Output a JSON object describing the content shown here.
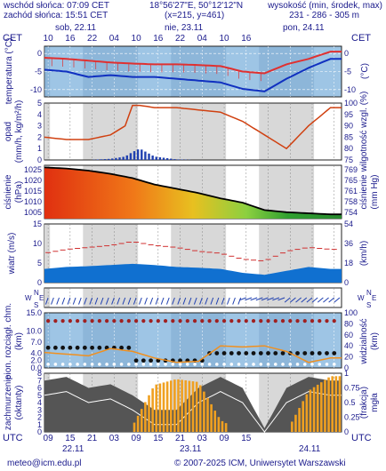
{
  "header": {
    "sunrise": "wschód słońca: 07:09 CET",
    "sunset": "zachód słońca: 15:51 CET",
    "coords": "18°56'27\"E, 50°12'12\"N",
    "grid": "(x=215, y=461)",
    "elev_label": "wysokość (min, środek, max)",
    "elev_values": "231 - 286 - 305 m"
  },
  "top_axis": {
    "tz_left": "CET",
    "tz_right": "CET",
    "days": [
      "sob, 22.11",
      "nie, 23.11",
      "pon, 24.11"
    ],
    "hours": [
      "10",
      "16",
      "22",
      "04",
      "10",
      "16",
      "22",
      "04",
      "10",
      "16"
    ]
  },
  "bottom_axis": {
    "tz_left": "UTC",
    "tz_right": "UTC",
    "hours": [
      "09",
      "15",
      "21",
      "03",
      "09",
      "15",
      "21",
      "03",
      "09",
      "15"
    ],
    "dates": [
      "22.11",
      "23.11",
      "24.11"
    ]
  },
  "footer": {
    "email": "meteo@icm.edu.pl",
    "copyright": "© 2007-2025 ICM, Uniwersytet Warszawski"
  },
  "colors": {
    "panel_bg": "#9ec5e5",
    "night_bg": "#d8d8d8",
    "temp_max": "#e03030",
    "temp_min": "#1030c0",
    "precip": "#2040b0",
    "humidity": "#d04010",
    "pressure_line": "#000000",
    "wind_gust": "#d03030",
    "wind_area": "#1070d0",
    "cloud_bar": "#f0a020"
  },
  "chart_data": [
    {
      "type": "line",
      "name": "temperature",
      "ylabel": "temperatura (°C)",
      "ylabel_right": "(°C)",
      "ylim": [
        -12,
        2
      ],
      "yticks_left": [
        0,
        -5,
        -10
      ],
      "yticks_right": [
        0,
        -5,
        -10
      ],
      "x_hours": [
        0,
        6,
        12,
        18,
        24,
        30,
        36,
        42,
        48,
        54,
        60,
        66,
        72,
        78
      ],
      "series": [
        {
          "values": [
            -1.2,
            -1.5,
            -2.0,
            -2.5,
            -2.8,
            -3.0,
            -3.0,
            -3.2,
            -3.5,
            -5.0,
            -5.5,
            -3.0,
            -1.5,
            0.5
          ]
        },
        {
          "values": [
            -4.5,
            -5.0,
            -6.5,
            -6.0,
            -6.5,
            -6.5,
            -7.0,
            -7.5,
            -8.0,
            -9.8,
            -10.5,
            -7.0,
            -4.0,
            -1.5
          ]
        }
      ]
    },
    {
      "type": "bar",
      "name": "precipitation",
      "ylabel": "opad (mm/h, kg/m²/h)",
      "ylabel_right": "wilgotność wzgl. (%)",
      "ylim": [
        0,
        5
      ],
      "y2lim": [
        75,
        100
      ],
      "yticks_left": [
        0,
        1,
        2,
        3,
        4,
        5
      ],
      "yticks_right": [
        75,
        80,
        85,
        90,
        95,
        100
      ],
      "x_hours": [
        0,
        6,
        12,
        18,
        22,
        24,
        26,
        30,
        36,
        42,
        48,
        54,
        60,
        66,
        72,
        78
      ],
      "precip_values": [
        0,
        0,
        0,
        0.1,
        0.3,
        0.7,
        1.0,
        0.3,
        0.05,
        0,
        0,
        0,
        0,
        0,
        0,
        0
      ],
      "humidity_values": [
        85,
        84,
        84,
        86,
        90,
        99,
        99,
        98,
        98,
        97,
        96,
        92,
        86,
        80,
        90,
        98
      ]
    },
    {
      "type": "area",
      "name": "pressure",
      "ylabel": "ciśnienie (hPa)",
      "ylabel_right": "ciśnienie (mm Hg)",
      "ylim": [
        1002,
        1027
      ],
      "yticks_left": [
        1005,
        1010,
        1015,
        1020,
        1025
      ],
      "yticks_right": [
        754,
        758,
        761,
        765,
        769
      ],
      "x_hours": [
        0,
        6,
        12,
        18,
        24,
        30,
        36,
        42,
        48,
        54,
        60,
        66,
        72,
        78
      ],
      "values": [
        1026,
        1025.5,
        1024.5,
        1023,
        1021,
        1018,
        1016,
        1014,
        1011.5,
        1009.5,
        1006,
        1005,
        1004.5,
        1004
      ]
    },
    {
      "type": "area",
      "name": "wind",
      "ylabel": "wiatr (m/s)",
      "ylabel_right": "(km/h)",
      "ylim": [
        0,
        15
      ],
      "yticks_left": [
        0,
        5,
        10,
        15
      ],
      "yticks_right": [
        0,
        18,
        36,
        54
      ],
      "x_hours": [
        0,
        6,
        12,
        18,
        24,
        30,
        36,
        42,
        48,
        54,
        60,
        66,
        72,
        78
      ],
      "speed": [
        3.5,
        4.0,
        4.2,
        4.5,
        4.8,
        4.5,
        4.0,
        3.8,
        3.5,
        2.5,
        2.0,
        3.0,
        4.0,
        3.5
      ],
      "gust": [
        7.5,
        8.5,
        9.0,
        9.5,
        10.5,
        9.5,
        9.0,
        8.0,
        7.5,
        6.0,
        5.5,
        8.0,
        9.0,
        8.5
      ]
    },
    {
      "type": "line",
      "name": "wind_direction",
      "ylabel": "W S N E"
    },
    {
      "type": "scatter",
      "name": "clouds_height",
      "ylabel": "pion. rozciągł. chm. (km)",
      "ylabel_right": "widzialność (km)",
      "ylim": [
        0,
        15
      ],
      "y2lim": [
        0,
        100
      ],
      "yticks_left": [
        0,
        2.0,
        4.0,
        7.0,
        10.0,
        15.0
      ],
      "yticks_right": [
        0,
        20,
        40,
        60,
        80,
        100
      ],
      "x_hours": [
        0,
        6,
        12,
        18,
        24,
        30,
        36,
        42,
        48,
        54,
        60,
        66,
        72,
        78
      ],
      "visibility": [
        28,
        25,
        22,
        35,
        30,
        18,
        10,
        12,
        40,
        38,
        40,
        30,
        10,
        18
      ]
    },
    {
      "type": "bar",
      "name": "cloud_cover",
      "ylabel": "zachmurzenie (oktanty)",
      "ylabel_right": "(frakcja) mgła",
      "ylim": [
        0,
        8
      ],
      "y2lim": [
        0,
        1
      ],
      "yticks_left": [
        0,
        1,
        2,
        3,
        4,
        5,
        6,
        7,
        8
      ],
      "yticks_right": [
        0,
        0.25,
        0.5,
        0.75,
        1
      ],
      "x_hours": [
        0,
        6,
        12,
        18,
        24,
        30,
        36,
        42,
        48,
        54,
        60,
        66,
        72,
        78
      ],
      "octants": [
        7,
        7.5,
        6,
        6.5,
        5,
        3,
        3,
        6,
        7.5,
        6,
        0.5,
        6,
        7.5,
        7
      ],
      "fog": [
        0,
        0,
        0,
        0,
        0.1,
        0.8,
        0.9,
        0.85,
        0.2,
        0,
        0,
        0,
        0.7,
        0.95
      ]
    }
  ]
}
